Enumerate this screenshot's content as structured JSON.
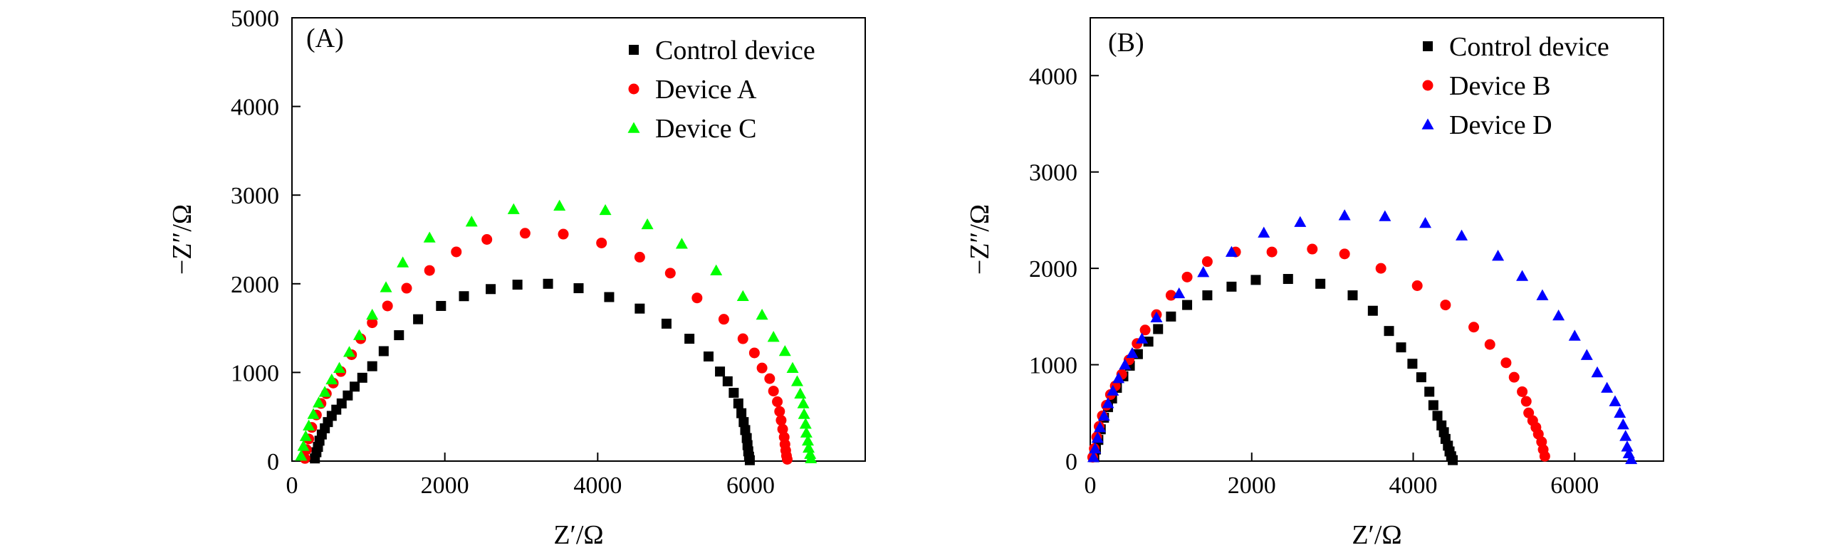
{
  "chart_data": [
    {
      "type": "scatter",
      "panel_label": "(A)",
      "xlabel": "Z′/Ω",
      "ylabel": "−Z″/Ω",
      "xlim": [
        0,
        7500
      ],
      "ylim": [
        0,
        5000
      ],
      "xticks": [
        0,
        2000,
        4000,
        6000
      ],
      "yticks": [
        0,
        1000,
        2000,
        3000,
        4000,
        5000
      ],
      "grid": false,
      "legend_position": "top-right",
      "series": [
        {
          "name": "Control device",
          "marker": "square",
          "color": "#000000",
          "points": [
            [
              300,
              30
            ],
            [
              320,
              100
            ],
            [
              340,
              160
            ],
            [
              360,
              230
            ],
            [
              390,
              300
            ],
            [
              430,
              370
            ],
            [
              470,
              440
            ],
            [
              520,
              510
            ],
            [
              580,
              580
            ],
            [
              650,
              650
            ],
            [
              730,
              740
            ],
            [
              820,
              840
            ],
            [
              920,
              940
            ],
            [
              1050,
              1070
            ],
            [
              1200,
              1240
            ],
            [
              1400,
              1420
            ],
            [
              1650,
              1600
            ],
            [
              1950,
              1750
            ],
            [
              2250,
              1860
            ],
            [
              2600,
              1940
            ],
            [
              2950,
              1990
            ],
            [
              3350,
              2000
            ],
            [
              3750,
              1950
            ],
            [
              4150,
              1850
            ],
            [
              4550,
              1720
            ],
            [
              4900,
              1550
            ],
            [
              5200,
              1380
            ],
            [
              5450,
              1180
            ],
            [
              5600,
              1010
            ],
            [
              5700,
              900
            ],
            [
              5780,
              770
            ],
            [
              5840,
              650
            ],
            [
              5880,
              540
            ],
            [
              5910,
              440
            ],
            [
              5930,
              350
            ],
            [
              5950,
              260
            ],
            [
              5960,
              180
            ],
            [
              5970,
              110
            ],
            [
              5980,
              50
            ],
            [
              5990,
              10
            ]
          ]
        },
        {
          "name": "Device A",
          "marker": "circle",
          "color": "#ff0000",
          "points": [
            [
              170,
              30
            ],
            [
              190,
              130
            ],
            [
              220,
              250
            ],
            [
              260,
              380
            ],
            [
              320,
              520
            ],
            [
              380,
              650
            ],
            [
              450,
              760
            ],
            [
              540,
              880
            ],
            [
              640,
              1010
            ],
            [
              780,
              1200
            ],
            [
              900,
              1380
            ],
            [
              1050,
              1560
            ],
            [
              1250,
              1750
            ],
            [
              1500,
              1950
            ],
            [
              1800,
              2150
            ],
            [
              2150,
              2360
            ],
            [
              2550,
              2500
            ],
            [
              3050,
              2570
            ],
            [
              3550,
              2560
            ],
            [
              4050,
              2460
            ],
            [
              4550,
              2300
            ],
            [
              4950,
              2120
            ],
            [
              5300,
              1840
            ],
            [
              5650,
              1600
            ],
            [
              5900,
              1380
            ],
            [
              6050,
              1220
            ],
            [
              6150,
              1050
            ],
            [
              6250,
              930
            ],
            [
              6300,
              790
            ],
            [
              6350,
              670
            ],
            [
              6380,
              560
            ],
            [
              6400,
              460
            ],
            [
              6420,
              360
            ],
            [
              6440,
              270
            ],
            [
              6450,
              190
            ],
            [
              6460,
              120
            ],
            [
              6470,
              60
            ],
            [
              6480,
              20
            ]
          ]
        },
        {
          "name": "Device C",
          "marker": "triangle",
          "color": "#00ff00",
          "points": [
            [
              120,
              60
            ],
            [
              150,
              170
            ],
            [
              180,
              280
            ],
            [
              220,
              400
            ],
            [
              280,
              530
            ],
            [
              350,
              660
            ],
            [
              430,
              780
            ],
            [
              520,
              920
            ],
            [
              620,
              1050
            ],
            [
              750,
              1230
            ],
            [
              880,
              1420
            ],
            [
              1050,
              1650
            ],
            [
              1230,
              1960
            ],
            [
              1450,
              2240
            ],
            [
              1800,
              2520
            ],
            [
              2350,
              2700
            ],
            [
              2900,
              2840
            ],
            [
              3500,
              2880
            ],
            [
              4100,
              2830
            ],
            [
              4650,
              2670
            ],
            [
              5100,
              2450
            ],
            [
              5550,
              2150
            ],
            [
              5900,
              1860
            ],
            [
              6150,
              1650
            ],
            [
              6300,
              1400
            ],
            [
              6450,
              1240
            ],
            [
              6550,
              1050
            ],
            [
              6610,
              900
            ],
            [
              6650,
              760
            ],
            [
              6690,
              650
            ],
            [
              6700,
              530
            ],
            [
              6720,
              420
            ],
            [
              6730,
              320
            ],
            [
              6750,
              230
            ],
            [
              6760,
              150
            ],
            [
              6780,
              80
            ],
            [
              6790,
              30
            ]
          ]
        }
      ]
    },
    {
      "type": "scatter",
      "panel_label": "(B)",
      "xlabel": "Z′/Ω",
      "ylabel": "−Z″/Ω",
      "xlim": [
        0,
        7100
      ],
      "ylim": [
        0,
        4600
      ],
      "xticks": [
        0,
        2000,
        4000,
        6000
      ],
      "yticks": [
        0,
        1000,
        2000,
        3000,
        4000
      ],
      "grid": false,
      "legend_position": "top-right",
      "series": [
        {
          "name": "Control device",
          "marker": "square",
          "color": "#000000",
          "points": [
            [
              50,
              40
            ],
            [
              70,
              120
            ],
            [
              100,
              220
            ],
            [
              130,
              330
            ],
            [
              170,
              450
            ],
            [
              220,
              560
            ],
            [
              270,
              650
            ],
            [
              330,
              760
            ],
            [
              410,
              880
            ],
            [
              490,
              990
            ],
            [
              590,
              1110
            ],
            [
              720,
              1240
            ],
            [
              840,
              1370
            ],
            [
              1000,
              1500
            ],
            [
              1200,
              1620
            ],
            [
              1450,
              1720
            ],
            [
              1750,
              1810
            ],
            [
              2050,
              1880
            ],
            [
              2450,
              1890
            ],
            [
              2850,
              1840
            ],
            [
              3250,
              1720
            ],
            [
              3500,
              1560
            ],
            [
              3700,
              1350
            ],
            [
              3850,
              1180
            ],
            [
              3990,
              1010
            ],
            [
              4100,
              870
            ],
            [
              4200,
              720
            ],
            [
              4250,
              580
            ],
            [
              4300,
              470
            ],
            [
              4350,
              370
            ],
            [
              4380,
              300
            ],
            [
              4400,
              230
            ],
            [
              4430,
              160
            ],
            [
              4450,
              100
            ],
            [
              4470,
              50
            ],
            [
              4490,
              10
            ]
          ]
        },
        {
          "name": "Device B",
          "marker": "circle",
          "color": "#ff0000",
          "points": [
            [
              30,
              40
            ],
            [
              50,
              130
            ],
            [
              80,
              250
            ],
            [
              110,
              360
            ],
            [
              150,
              470
            ],
            [
              200,
              580
            ],
            [
              250,
              690
            ],
            [
              310,
              780
            ],
            [
              390,
              900
            ],
            [
              480,
              1050
            ],
            [
              580,
              1220
            ],
            [
              680,
              1360
            ],
            [
              820,
              1520
            ],
            [
              1000,
              1720
            ],
            [
              1200,
              1910
            ],
            [
              1450,
              2070
            ],
            [
              1800,
              2170
            ],
            [
              2250,
              2170
            ],
            [
              2750,
              2200
            ],
            [
              3150,
              2150
            ],
            [
              3600,
              2000
            ],
            [
              4050,
              1820
            ],
            [
              4400,
              1620
            ],
            [
              4750,
              1390
            ],
            [
              4950,
              1210
            ],
            [
              5150,
              1020
            ],
            [
              5250,
              870
            ],
            [
              5350,
              720
            ],
            [
              5400,
              620
            ],
            [
              5430,
              500
            ],
            [
              5480,
              420
            ],
            [
              5520,
              350
            ],
            [
              5550,
              280
            ],
            [
              5590,
              200
            ],
            [
              5610,
              120
            ],
            [
              5630,
              50
            ]
          ]
        },
        {
          "name": "Device D",
          "marker": "triangle",
          "color": "#0000ff",
          "points": [
            [
              40,
              40
            ],
            [
              60,
              130
            ],
            [
              90,
              240
            ],
            [
              120,
              350
            ],
            [
              170,
              470
            ],
            [
              220,
              600
            ],
            [
              280,
              730
            ],
            [
              350,
              860
            ],
            [
              430,
              1000
            ],
            [
              520,
              1120
            ],
            [
              640,
              1270
            ],
            [
              820,
              1490
            ],
            [
              1100,
              1740
            ],
            [
              1400,
              1960
            ],
            [
              1750,
              2170
            ],
            [
              2150,
              2370
            ],
            [
              2600,
              2480
            ],
            [
              3150,
              2550
            ],
            [
              3650,
              2540
            ],
            [
              4150,
              2470
            ],
            [
              4600,
              2340
            ],
            [
              5050,
              2130
            ],
            [
              5350,
              1920
            ],
            [
              5600,
              1720
            ],
            [
              5800,
              1510
            ],
            [
              6000,
              1300
            ],
            [
              6150,
              1100
            ],
            [
              6280,
              920
            ],
            [
              6400,
              760
            ],
            [
              6500,
              620
            ],
            [
              6560,
              500
            ],
            [
              6600,
              380
            ],
            [
              6630,
              260
            ],
            [
              6650,
              150
            ],
            [
              6670,
              80
            ],
            [
              6700,
              20
            ]
          ]
        }
      ]
    }
  ]
}
